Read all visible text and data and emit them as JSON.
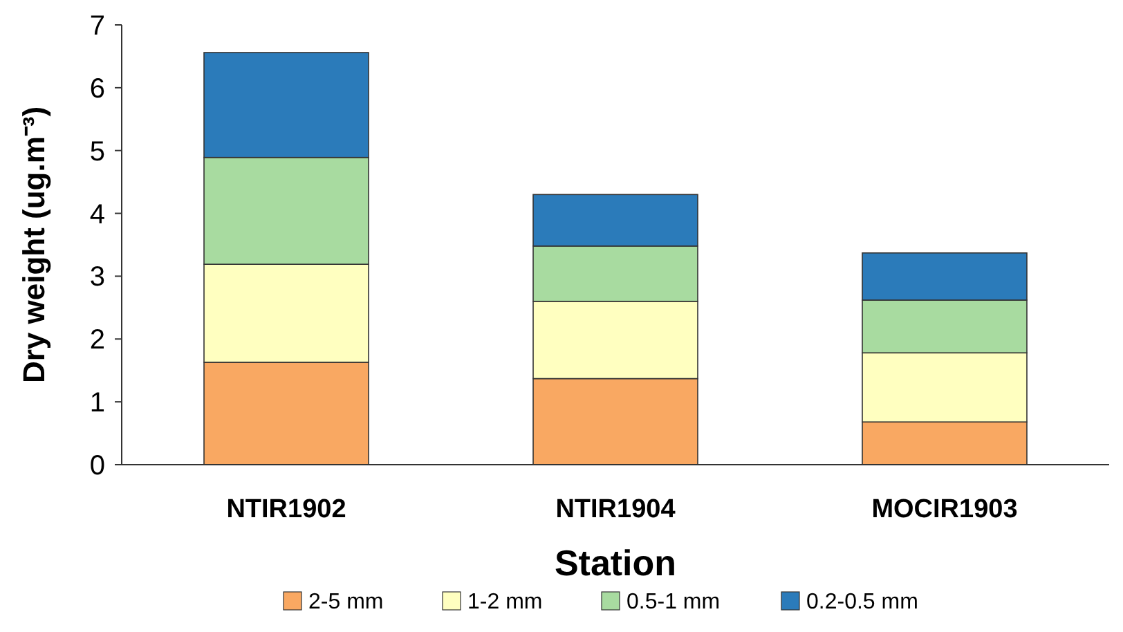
{
  "chart_data": {
    "type": "bar",
    "stacked": true,
    "xlabel": "Station",
    "ylabel": "Dry weight (ug.m⁻³)",
    "categories": [
      "NTIR1902",
      "NTIR1904",
      "MOCIR1903"
    ],
    "series": [
      {
        "name": "2-5 mm",
        "color": "#f9a862",
        "values": [
          1.63,
          1.37,
          0.68
        ]
      },
      {
        "name": "1-2 mm",
        "color": "#ffffc0",
        "values": [
          1.56,
          1.23,
          1.1
        ]
      },
      {
        "name": "0.5-1 mm",
        "color": "#a8dba0",
        "values": [
          1.7,
          0.88,
          0.84
        ]
      },
      {
        "name": "0.2-0.5 mm",
        "color": "#2b7bba",
        "values": [
          1.67,
          0.82,
          0.75
        ]
      }
    ],
    "ylim": [
      0,
      7
    ],
    "yticks": [
      0,
      1,
      2,
      3,
      4,
      5,
      6,
      7
    ],
    "grid": false,
    "legend": "bottom"
  }
}
